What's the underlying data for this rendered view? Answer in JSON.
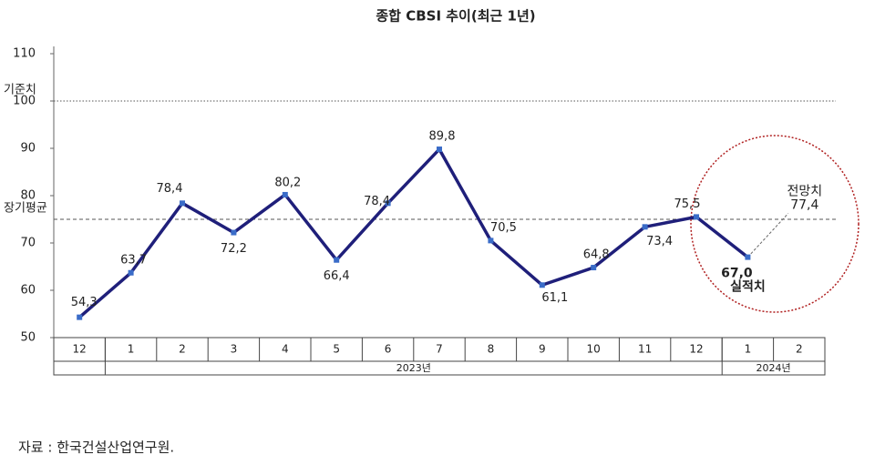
{
  "chart_data": {
    "type": "line",
    "title": "종합 CBSI 추이(최근 1년)",
    "categories": [
      "12",
      "1",
      "2",
      "3",
      "4",
      "5",
      "6",
      "7",
      "8",
      "9",
      "10",
      "11",
      "12",
      "1",
      "2"
    ],
    "year_groups": [
      {
        "label": "2023년",
        "from": 1,
        "to": 12
      },
      {
        "label": "2024년",
        "from": 13,
        "to": 14
      }
    ],
    "series": [
      {
        "color": "#1f1f7a",
        "values": [
          54.3,
          63.7,
          78.4,
          72.2,
          80.2,
          66.4,
          78.4,
          89.8,
          70.5,
          61.1,
          64.8,
          73.4,
          75.5,
          67.0,
          null
        ],
        "value_labels": [
          "54,3",
          "63,7",
          "78,4",
          "72,2",
          "80,2",
          "66,4",
          "78,4",
          "89,8",
          "70,5",
          "61,1",
          "64,8",
          "73,4",
          "75,5",
          "67,0",
          null
        ]
      }
    ],
    "actual_label": "실적치",
    "forecast": {
      "label": "전망치",
      "value": 77.4,
      "value_label": "77,4"
    },
    "reference_lines": [
      {
        "label": "기준치",
        "value": 100,
        "style": "dotted"
      },
      {
        "label": "장기평균",
        "value": 75,
        "style": "dashed"
      }
    ],
    "ylim": [
      50,
      110
    ],
    "yticks": [
      50,
      60,
      70,
      80,
      90,
      100,
      110
    ],
    "source": "자료 : 한국건설산업연구원."
  }
}
